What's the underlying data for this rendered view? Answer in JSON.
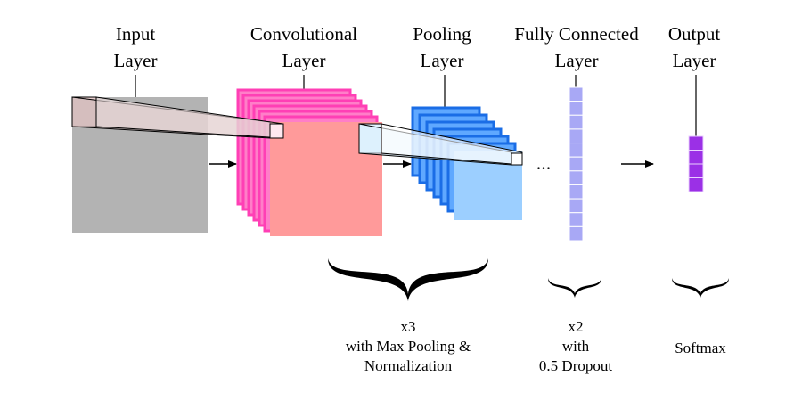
{
  "layers": [
    {
      "id": "input",
      "line1": "Input",
      "line2": "Layer",
      "color": "#b3b3b3"
    },
    {
      "id": "conv",
      "line1": "Convolutional",
      "line2": "Layer",
      "color_front": "#ff9a9a",
      "color_back": "#ff4fc0"
    },
    {
      "id": "pool",
      "line1": "Pooling",
      "line2": "Layer",
      "color_front": "#9ccfff",
      "color_back": "#1a6de6"
    },
    {
      "id": "fc",
      "line1": "Fully Connected",
      "line2": "Layer",
      "color": "#a8a8f5"
    },
    {
      "id": "output",
      "line1": "Output",
      "line2": "Layer",
      "color": "#9b30e6"
    }
  ],
  "ellipsis": "...",
  "captions": {
    "conv_block": {
      "line1": "x3",
      "line2": "with Max Pooling &",
      "line3": "Normalization"
    },
    "fc_block": {
      "line1": "x2",
      "line2": "with",
      "line3": "0.5 Dropout"
    },
    "output_block": {
      "line1": "Softmax"
    }
  }
}
